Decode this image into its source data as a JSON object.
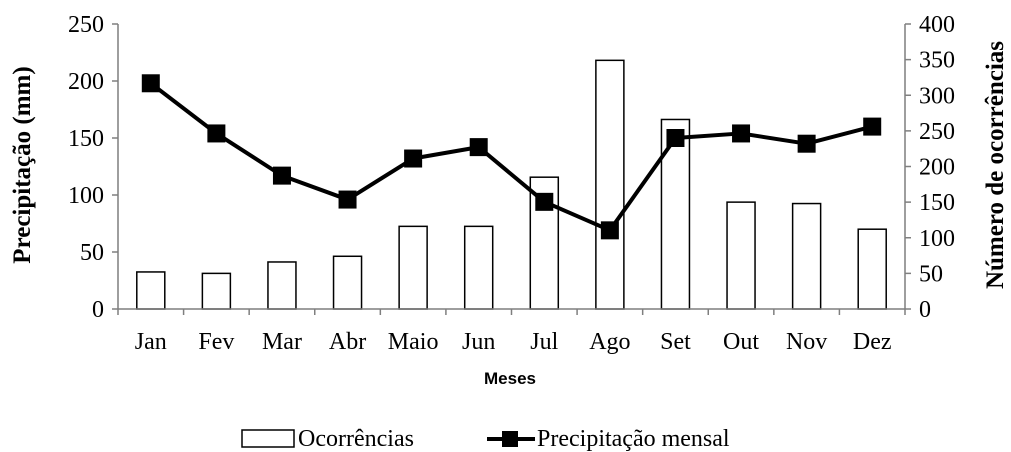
{
  "chart_data": {
    "type": "bar+line",
    "categories": [
      "Jan",
      "Fev",
      "Mar",
      "Abr",
      "Maio",
      "Jun",
      "Jul",
      "Ago",
      "Set",
      "Out",
      "Nov",
      "Dez"
    ],
    "xlabel": "Meses",
    "y_left": {
      "label": "Precipitação (mm)",
      "range": [
        0,
        250
      ],
      "ticks": [
        0,
        50,
        100,
        150,
        200,
        250
      ]
    },
    "y_right": {
      "label": "Número de ocorrências",
      "range": [
        0,
        400
      ],
      "ticks": [
        0,
        50,
        100,
        150,
        200,
        250,
        300,
        350,
        400
      ]
    },
    "series": [
      {
        "name": "Ocorrências",
        "type": "bar",
        "axis": "right",
        "color": "#ffffff",
        "values": [
          52,
          50,
          66,
          74,
          116,
          116,
          185,
          349,
          266,
          150,
          148,
          112
        ]
      },
      {
        "name": "Precipitação mensal",
        "type": "line",
        "axis": "left",
        "color": "#000000",
        "values": [
          198,
          154,
          117,
          96,
          132,
          142,
          94,
          69,
          150,
          154,
          145,
          160
        ]
      }
    ],
    "legend_position": "bottom",
    "grid": false
  }
}
